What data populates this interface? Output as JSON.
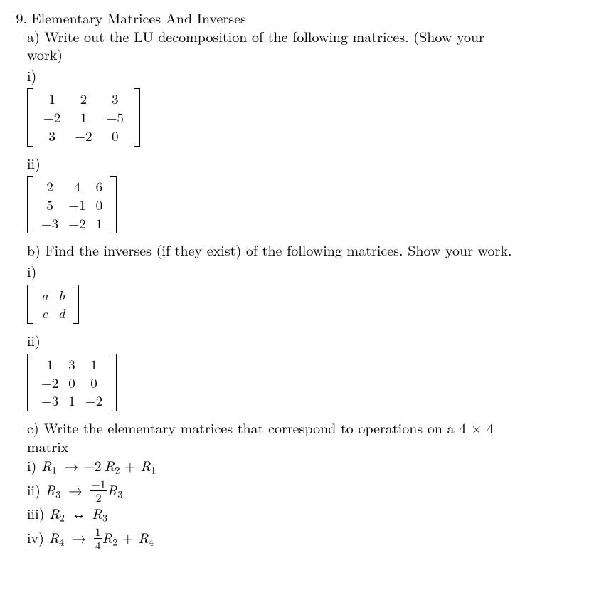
{
  "question": {
    "number": "9.",
    "title": "Elementary Matrices And Inverses"
  },
  "a": {
    "text_pre": "a) Write out the LU decomposition of the following matrices.  (Show your",
    "text_post": "work)",
    "i": {
      "label": "i)",
      "rows": [
        [
          "1",
          "2",
          "3"
        ],
        [
          "−2",
          "1",
          "−5"
        ],
        [
          "3",
          "−2",
          "0"
        ]
      ]
    },
    "ii": {
      "label": "ii)",
      "rows": [
        [
          "2",
          "4",
          "6"
        ],
        [
          "5",
          "−1",
          "0"
        ],
        [
          "−3",
          "−2",
          "1"
        ]
      ]
    }
  },
  "b": {
    "text": "b) Find the inverses (if they exist) of the following matrices. Show your work.",
    "i": {
      "label": "i)",
      "rows": [
        [
          "a",
          "b"
        ],
        [
          "c",
          "d"
        ]
      ]
    },
    "ii": {
      "label": "ii)",
      "rows": [
        [
          "1",
          "3",
          "1"
        ],
        [
          "−2",
          "0",
          "0"
        ],
        [
          "−3",
          "1",
          "−2"
        ]
      ]
    }
  },
  "c": {
    "text_pre": "c) Write the elementary matrices that correspond to operations on a 4 × 4",
    "text_post": "matrix",
    "ops": {
      "i": {
        "label": "i) ",
        "parts": [
          "R",
          "1",
          " → −2",
          "R",
          "2",
          " + ",
          "R",
          "1"
        ]
      },
      "ii": {
        "label": "ii) ",
        "lhs_r": "R",
        "lhs_sub": "3",
        "arrow": " → ",
        "frac_num": "−1",
        "frac_den": "2",
        "rhs_r": "R",
        "rhs_sub": "3"
      },
      "iii": {
        "label": "iii) ",
        "r2": "R",
        "r2sub": "2",
        "swap": " ↔ ",
        "r3": "R",
        "r3sub": "3"
      },
      "iv": {
        "label": "iv) ",
        "lhs_r": "R",
        "lhs_sub": "4",
        "arrow": " → ",
        "frac_num": "1",
        "frac_den": "4",
        "mid_r": "R",
        "mid_sub": "2",
        "plus": " + ",
        "rhs_r": "R",
        "rhs_sub": "4"
      }
    }
  }
}
